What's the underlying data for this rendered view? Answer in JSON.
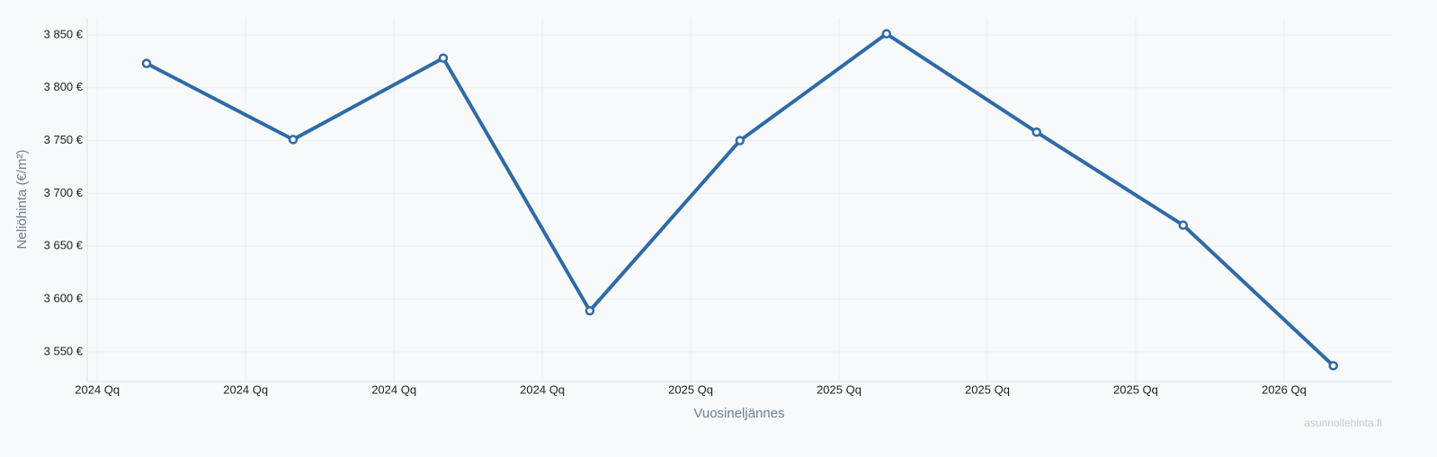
{
  "chart_data": {
    "type": "line",
    "x_label": "Vuosineljännes",
    "y_label": "Neliöhinta (€/m²)",
    "watermark": "asunnollehinta.fi",
    "x": [
      2024.083,
      2024.33,
      2024.583,
      2024.83,
      2025.083,
      2025.33,
      2025.583,
      2025.83,
      2026.083
    ],
    "series": [
      {
        "name": "Neliöhinta",
        "color": "#2e6aa6",
        "values": [
          3823,
          3751,
          3828,
          3589,
          3750,
          3851,
          3758,
          3670,
          3537
        ]
      }
    ],
    "xlim": [
      2023.983,
      2026.182
    ],
    "xticks": [
      {
        "value": 2024,
        "label": "2024 Qq"
      },
      {
        "value": 2024.25,
        "label": "2024 Qq"
      },
      {
        "value": 2024.5,
        "label": "2024 Qq"
      },
      {
        "value": 2024.75,
        "label": "2024 Qq"
      },
      {
        "value": 2025,
        "label": "2025 Qq"
      },
      {
        "value": 2025.25,
        "label": "2025 Qq"
      },
      {
        "value": 2025.5,
        "label": "2025 Qq"
      },
      {
        "value": 2025.75,
        "label": "2025 Qq"
      },
      {
        "value": 2026,
        "label": "2026 Qq"
      }
    ],
    "ylim": [
      3522,
      3866
    ],
    "yticks": [
      {
        "value": 3550,
        "label": "3 550 €"
      },
      {
        "value": 3600,
        "label": "3 600 €"
      },
      {
        "value": 3650,
        "label": "3 650 €"
      },
      {
        "value": 3700,
        "label": "3 700 €"
      },
      {
        "value": 3750,
        "label": "3 750 €"
      },
      {
        "value": 3800,
        "label": "3 800 €"
      },
      {
        "value": 3850,
        "label": "3 850 €"
      }
    ],
    "grid": true
  }
}
